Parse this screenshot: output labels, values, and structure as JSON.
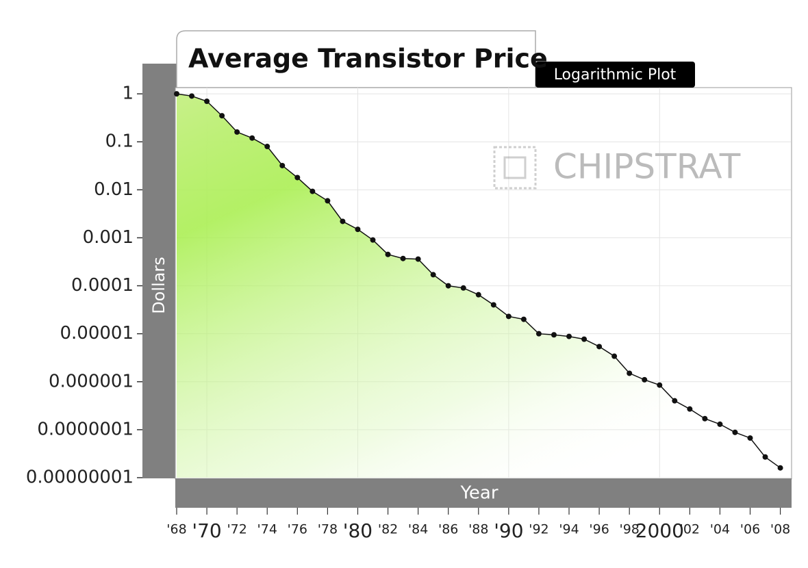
{
  "chart_data": {
    "type": "line",
    "title": "Average Transistor Price",
    "subtitle": "Logarithmic Plot",
    "y_label": "Dollars",
    "x_label": "Year",
    "watermark": "CHIPSTRAT",
    "log_y": true,
    "grid": true,
    "color": "#111111",
    "fill_color": "#8ee63a",
    "x": [
      1968,
      1969,
      1970,
      1971,
      1972,
      1973,
      1974,
      1975,
      1976,
      1977,
      1978,
      1979,
      1980,
      1981,
      1982,
      1983,
      1984,
      1985,
      1986,
      1987,
      1988,
      1989,
      1990,
      1991,
      1992,
      1993,
      1994,
      1995,
      1996,
      1997,
      1998,
      1999,
      2000,
      2001,
      2002,
      2003,
      2004,
      2005,
      2006,
      2007,
      2008
    ],
    "values": [
      1,
      0.9,
      0.7,
      0.35,
      0.16,
      0.12,
      0.08,
      0.032,
      0.018,
      0.0093,
      0.0059,
      0.0022,
      0.0015,
      0.0009,
      0.00045,
      0.00037,
      0.00036,
      0.00017,
      0.0001,
      9e-05,
      6.5e-05,
      4e-05,
      2.3e-05,
      2e-05,
      1e-05,
      9.5e-06,
      8.8e-06,
      7.7e-06,
      5.4e-06,
      3.4e-06,
      1.5e-06,
      1.1e-06,
      8.5e-07,
      4e-07,
      2.7e-07,
      1.7e-07,
      1.3e-07,
      8.8e-08,
      6.7e-08,
      2.7e-08,
      1.6e-08
    ],
    "xlim": [
      1968,
      2008.7
    ],
    "ylim": [
      1e-08,
      1.35
    ],
    "xticks": [
      {
        "value": 1968,
        "label": "'68"
      },
      {
        "value": 1970,
        "label": "'70"
      },
      {
        "value": 1972,
        "label": "'72"
      },
      {
        "value": 1974,
        "label": "'74"
      },
      {
        "value": 1976,
        "label": "'76"
      },
      {
        "value": 1978,
        "label": "'78"
      },
      {
        "value": 1980,
        "label": "'80"
      },
      {
        "value": 1982,
        "label": "'82"
      },
      {
        "value": 1984,
        "label": "'84"
      },
      {
        "value": 1986,
        "label": "'86"
      },
      {
        "value": 1988,
        "label": "'88"
      },
      {
        "value": 1990,
        "label": "'90"
      },
      {
        "value": 1992,
        "label": "'92"
      },
      {
        "value": 1994,
        "label": "'94"
      },
      {
        "value": 1996,
        "label": "'96"
      },
      {
        "value": 1998,
        "label": "'98"
      },
      2000,
      {
        "value": 2002,
        "label": "'02"
      },
      {
        "value": 2004,
        "label": "'04"
      },
      {
        "value": 2006,
        "label": "'06"
      },
      {
        "value": 2008,
        "label": "'08"
      }
    ],
    "yticks": [
      1,
      0.1,
      0.01,
      0.001,
      0.0001,
      1e-05,
      1e-06,
      {
        "value": 1e-07,
        "label": "0.0000001"
      },
      {
        "value": 1e-08,
        "label": "0.00000001"
      }
    ]
  }
}
